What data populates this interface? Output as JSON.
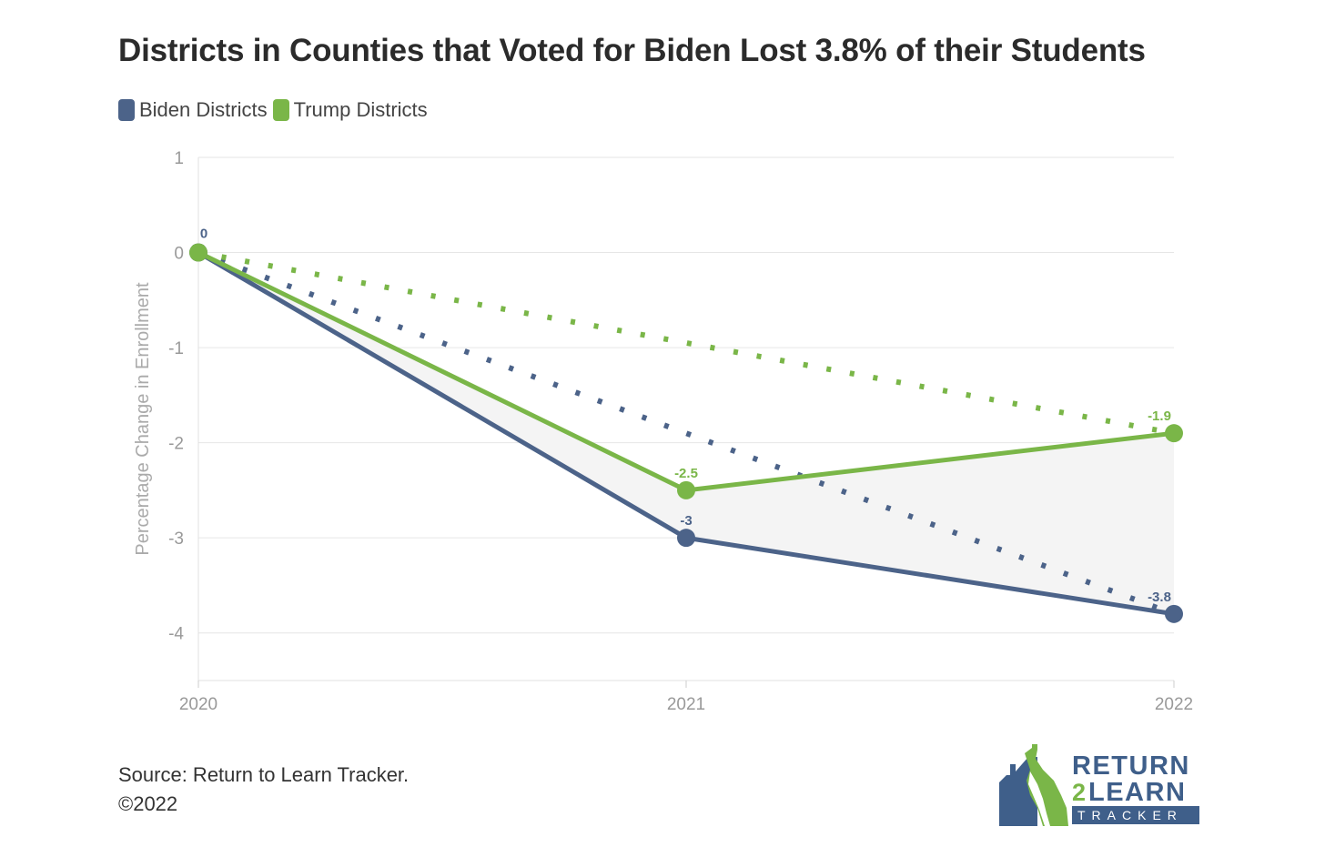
{
  "title": "Districts in Counties that Voted for Biden Lost 3.8% of their Students",
  "legend": [
    {
      "label": "Biden Districts",
      "color": "#4c6389"
    },
    {
      "label": "Trump Districts",
      "color": "#7ab648"
    }
  ],
  "source": {
    "line1": "Source: Return to Learn Tracker.",
    "line2": "©2022"
  },
  "logo": {
    "line1": "RETURN",
    "line2_num": "2",
    "line2_word": "LEARN",
    "line3": "TRACKER",
    "icon": "house-map-icon"
  },
  "chart_data": {
    "type": "line",
    "title": "Districts in Counties that Voted for Biden Lost 3.8% of their Students",
    "xlabel": "",
    "ylabel": "Percentage Change in Enrollment",
    "x": [
      2020,
      2021,
      2022
    ],
    "x_tick_labels": [
      "2020",
      "2021",
      "2022"
    ],
    "ylim": [
      -4.5,
      1
    ],
    "y_ticks": [
      1,
      0,
      -1,
      -2,
      -3,
      -4
    ],
    "grid": true,
    "legend_position": "top-left",
    "series": [
      {
        "name": "Biden Districts",
        "color": "#4c6389",
        "values": [
          0,
          -3,
          -3.8
        ],
        "data_labels": [
          "0",
          "-3",
          "-3.8"
        ]
      },
      {
        "name": "Trump Districts",
        "color": "#7ab648",
        "values": [
          0,
          -2.5,
          -1.9
        ],
        "data_labels": [
          "",
          "-2.5",
          "-1.9"
        ]
      }
    ],
    "trendlines": [
      {
        "series": "Biden Districts",
        "style": "dotted",
        "from": [
          2020,
          0
        ],
        "to": [
          2022,
          -3.8
        ]
      },
      {
        "series": "Trump Districts",
        "style": "dotted",
        "from": [
          2020,
          0
        ],
        "to": [
          2022,
          -1.9
        ]
      }
    ]
  }
}
